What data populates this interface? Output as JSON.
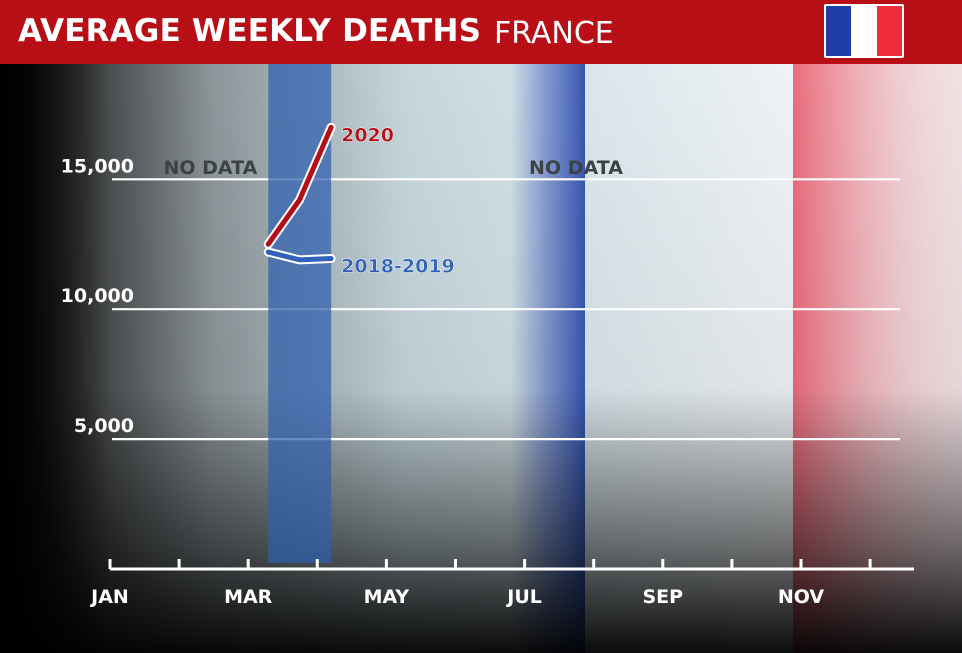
{
  "header": {
    "title": "AVERAGE WEEKLY DEATHS",
    "country": "FRANCE",
    "flag_colors": [
      "#1f3fa6",
      "#ffffff",
      "#ef2d3a"
    ],
    "bar_color": "#b80f16"
  },
  "chart_data": {
    "type": "line",
    "title": "AVERAGE WEEKLY DEATHS",
    "subtitle": "FRANCE",
    "xlabel": "",
    "ylabel": "",
    "x_ticks": [
      "JAN",
      "MAR",
      "MAY",
      "JUL",
      "SEP",
      "NOV"
    ],
    "y_ticks": [
      {
        "value": 5000,
        "label": "5,000"
      },
      {
        "value": 10000,
        "label": "10,000"
      },
      {
        "value": 15000,
        "label": "15,000"
      }
    ],
    "xlim": [
      "Jan",
      "Dec"
    ],
    "ylim": [
      0,
      17500
    ],
    "grid": true,
    "series": [
      {
        "name": "2020",
        "color": "#b30f16",
        "points": [
          {
            "x": "Mar 10",
            "y": 12500
          },
          {
            "x": "Mar 24",
            "y": 14200
          },
          {
            "x": "Apr 7",
            "y": 17000
          }
        ]
      },
      {
        "name": "2018-2019",
        "color": "#2f62b8",
        "points": [
          {
            "x": "Mar 10",
            "y": 12200
          },
          {
            "x": "Mar 24",
            "y": 11900
          },
          {
            "x": "Apr 7",
            "y": 11950
          }
        ]
      }
    ],
    "annotations": [
      {
        "text": "NO DATA",
        "x": "Jan 25",
        "y": 15200
      },
      {
        "text": "NO DATA",
        "x": "Jul 3",
        "y": 15200
      }
    ],
    "highlight_band": {
      "x_start": "Mar 10",
      "x_end": "Apr 7",
      "color": "#2f5fae"
    }
  }
}
